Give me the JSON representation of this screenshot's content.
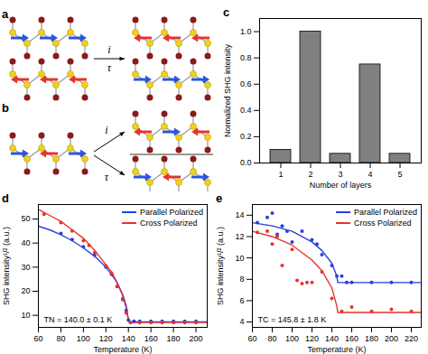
{
  "diagrams": [
    {
      "label": "a",
      "operations": [
        "i",
        "τ"
      ]
    },
    {
      "label": "b",
      "operations": [
        "i",
        "τ"
      ]
    }
  ],
  "chart_data": [
    {
      "type": "bar",
      "title": "c",
      "categories": [
        "1",
        "2",
        "3",
        "4",
        "5"
      ],
      "values": [
        0.1,
        1.0,
        0.07,
        0.75,
        0.07
      ],
      "color": "#808080",
      "xlabel": "Number of layers",
      "ylabel": "Normalized SHG intensity",
      "ylim": [
        0,
        1.1
      ],
      "yticks": [
        {
          "value": 0,
          "label": "0.0"
        },
        {
          "value": 0.2,
          "label": "0.2"
        },
        {
          "value": 0.4,
          "label": "0.4"
        },
        {
          "value": 0.6,
          "label": "0.6"
        },
        {
          "value": 0.8,
          "label": "0.8"
        },
        {
          "value": 1,
          "label": "1.0"
        }
      ]
    },
    {
      "type": "line",
      "title": "d",
      "xlabel": "Temperature (K)",
      "ylabel": "SHG intensity¹/² (a.u.)",
      "xlim": [
        60,
        210
      ],
      "xticks": [
        60,
        80,
        100,
        120,
        140,
        160,
        180,
        200
      ],
      "ylim": [
        5,
        56
      ],
      "yticks": [
        10,
        20,
        30,
        40,
        50
      ],
      "legend": "upper right",
      "annotation": "TN = 140.0 ± 0.1 K",
      "series": [
        {
          "name": "Parallel Polarized",
          "color": "#2a3fe0",
          "type": "line",
          "x": [
            60,
            70,
            80,
            90,
            100,
            110,
            120,
            125,
            130,
            135,
            138,
            140,
            141,
            150,
            170,
            190,
            210
          ],
          "values": [
            47,
            45.5,
            43.5,
            41,
            38,
            34.5,
            30,
            27,
            23.5,
            18.5,
            14,
            8,
            7.3,
            7.3,
            7.3,
            7.3,
            7.3
          ]
        },
        {
          "name": "Cross Polarized",
          "color": "#e8332a",
          "type": "line",
          "x": [
            60,
            70,
            80,
            90,
            100,
            110,
            120,
            125,
            130,
            135,
            138,
            140,
            141,
            150,
            170,
            190,
            210
          ],
          "values": [
            54,
            51.5,
            49,
            45.5,
            42,
            37,
            31,
            28,
            23.5,
            18,
            13,
            8,
            7,
            7,
            7,
            7,
            7
          ]
        },
        {
          "color": "#2a3fe0",
          "type": "scatter",
          "marker": "circle",
          "x": [
            80,
            90,
            100,
            110,
            120,
            125,
            130,
            135,
            138,
            140,
            145,
            150,
            160,
            170,
            180,
            190,
            200
          ],
          "values": [
            44,
            41.5,
            38.5,
            35,
            30,
            27,
            22,
            16.5,
            12,
            8,
            7.5,
            7.5,
            7.5,
            7.5,
            7.5,
            7.5,
            7.5
          ]
        },
        {
          "color": "#e8332a",
          "type": "scatter",
          "marker": "circle",
          "x": [
            65,
            80,
            90,
            100,
            105,
            110,
            120,
            125,
            130,
            135,
            138,
            142,
            150,
            160,
            170,
            180,
            190,
            200
          ],
          "values": [
            52,
            48.5,
            45,
            41,
            39,
            36,
            30.5,
            27.5,
            22,
            17,
            11,
            7,
            7,
            7,
            7,
            7,
            7,
            7
          ]
        }
      ]
    },
    {
      "type": "line",
      "title": "e",
      "xlabel": "Temperature (K)",
      "ylabel": "SHG intensity¹/² (a.u.)",
      "xlim": [
        60,
        230
      ],
      "xticks": [
        60,
        80,
        100,
        120,
        140,
        160,
        180,
        200,
        220
      ],
      "ylim": [
        3.5,
        15
      ],
      "yticks": [
        4,
        6,
        8,
        10,
        12,
        14
      ],
      "legend": "upper right",
      "annotation": "TC = 145.8 ± 1.8 K",
      "series": [
        {
          "name": "Parallel Polarized",
          "color": "#2a3fe0",
          "type": "line",
          "x": [
            60,
            80,
            100,
            120,
            130,
            140,
            145,
            146,
            230
          ],
          "values": [
            13.3,
            13.0,
            12.5,
            11.5,
            10.7,
            9.5,
            8.3,
            7.7,
            7.7
          ]
        },
        {
          "name": "Cross Polarized",
          "color": "#e8332a",
          "type": "line",
          "x": [
            60,
            80,
            100,
            120,
            130,
            140,
            145,
            146,
            230
          ],
          "values": [
            12.5,
            12.0,
            11.2,
            9.8,
            8.8,
            7.2,
            5.5,
            4.9,
            4.9
          ]
        },
        {
          "color": "#2a3fe0",
          "type": "scatter",
          "marker": "circle",
          "x": [
            65,
            75,
            80,
            85,
            90,
            95,
            100,
            110,
            120,
            125,
            130,
            140,
            145,
            150,
            155,
            160,
            180,
            200,
            220
          ],
          "values": [
            13.3,
            13.8,
            14.2,
            12.2,
            13.0,
            12.5,
            11.5,
            12.5,
            11.7,
            11.3,
            10.3,
            9.3,
            8.3,
            8.3,
            7.7,
            7.7,
            7.7,
            7.7,
            7.7
          ]
        },
        {
          "color": "#e8332a",
          "type": "scatter",
          "marker": "circle",
          "x": [
            65,
            75,
            80,
            85,
            90,
            100,
            105,
            110,
            115,
            120,
            130,
            140,
            150,
            160,
            180,
            200,
            220
          ],
          "values": [
            12.4,
            12.5,
            11.3,
            12.0,
            9.3,
            10.8,
            7.9,
            7.6,
            7.7,
            7.7,
            8.7,
            6.2,
            5.0,
            5.4,
            5.0,
            5.2,
            5.0
          ]
        }
      ]
    }
  ]
}
